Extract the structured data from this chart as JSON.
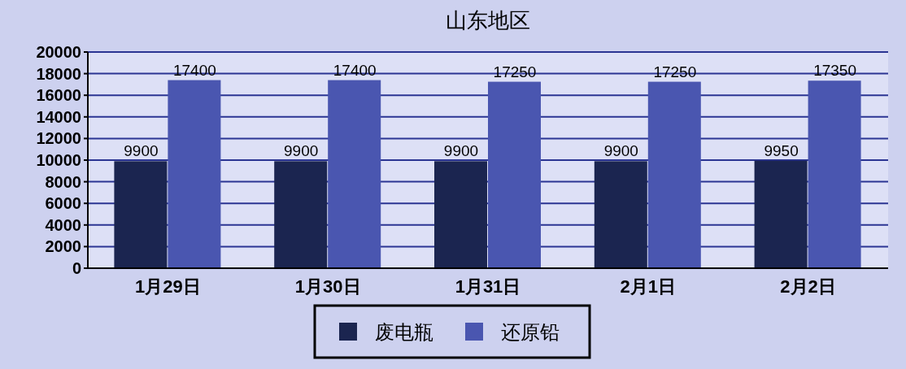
{
  "chart_data": {
    "type": "bar",
    "title": "山东地区",
    "categories": [
      "1月29日",
      "1月30日",
      "1月31日",
      "2月1日",
      "2月2日"
    ],
    "series": [
      {
        "name": "废电瓶",
        "color": "#1b2550",
        "values": [
          9900,
          9900,
          9900,
          9900,
          9950
        ]
      },
      {
        "name": "还原铅",
        "color": "#4a56b0",
        "values": [
          17400,
          17400,
          17250,
          17250,
          17350
        ]
      }
    ],
    "ylim": [
      0,
      20000
    ],
    "yticks": [
      0,
      2000,
      4000,
      6000,
      8000,
      10000,
      12000,
      14000,
      16000,
      18000,
      20000
    ],
    "grid": "y",
    "legend": "bottom",
    "data_labels": true
  }
}
